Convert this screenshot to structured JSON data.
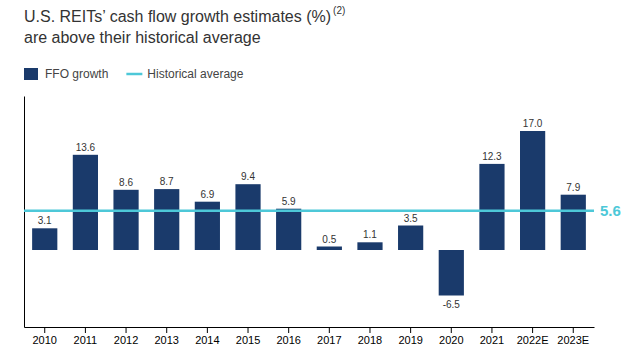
{
  "chart_data": {
    "type": "bar",
    "title": [
      "U.S. REITs’ cash flow growth estimates (%)",
      "are above their historical average"
    ],
    "annotations": [
      {
        "text": "(2)"
      }
    ],
    "categories": [
      "2010",
      "2011",
      "2012",
      "2013",
      "2014",
      "2015",
      "2016",
      "2017",
      "2018",
      "2019",
      "2020",
      "2021",
      "2022E",
      "2023E"
    ],
    "series": [
      {
        "name": "FFO growth",
        "color": "#1a3a6b",
        "values": [
          3.1,
          13.6,
          8.6,
          8.7,
          6.9,
          9.4,
          5.9,
          0.5,
          1.1,
          3.5,
          -6.5,
          12.3,
          17.0,
          7.9
        ],
        "value_labels": [
          "3.1",
          "13.6",
          "8.6",
          "8.7",
          "6.9",
          "9.4",
          "5.9",
          "0.5",
          "1.1",
          "3.5",
          "-6.5",
          "12.3",
          "17.0",
          "7.9"
        ]
      }
    ],
    "historical_average": {
      "name": "Historical average",
      "value": 5.6,
      "color": "#4dc8d8"
    },
    "ylim": [
      -11,
      22
    ],
    "data_labels": true,
    "tick_labels": "x",
    "legend": "top-left"
  }
}
